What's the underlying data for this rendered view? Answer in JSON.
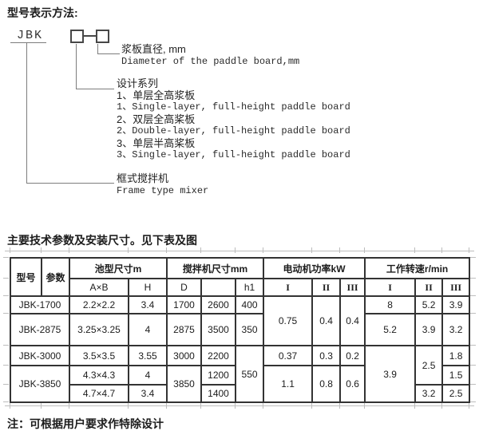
{
  "page": {
    "title": "型号表示方法:",
    "intro": "主要技术参数及安装尺寸。见下表及图",
    "note": "注：可根据用户要求作特除设计"
  },
  "diagram": {
    "model_prefix": "JBK",
    "paddle_diameter": {
      "zh": "浆板直径, mm",
      "en": "Diameter of the paddle board,mm"
    },
    "design_series": {
      "label": "设计系列",
      "item1_zh": "1、单层全高浆板",
      "item1_en": "1、Single-layer, full-height paddle board",
      "item2_zh": "2、双层全高桨板",
      "item2_en": "2、Double-layer, full-height paddle board",
      "item3_zh": "3、单层半高桨板",
      "item3_en": "3、Single-layer, full-height paddle board"
    },
    "frame_mixer": {
      "zh": "框式搅拌机",
      "en": "Frame type mixer"
    }
  },
  "table": {
    "col_model": "型号",
    "col_param": "参数",
    "grp_pool": "池型尺寸m",
    "grp_mixer": "搅拌机尺寸mm",
    "grp_power": "电动机功率kW",
    "grp_speed": "工作转速r/min",
    "sub": {
      "axb": "A×B",
      "h": "H",
      "d": "D",
      "blank": "",
      "h1": "h1",
      "p1": "I",
      "p2": "II",
      "p3": "III",
      "s1": "I",
      "s2": "II",
      "s3": "III"
    },
    "rows": {
      "r1": {
        "model": "JBK-1700",
        "axb": "2.2×2.2",
        "h": "3.4",
        "d": "1700",
        "d2": "2600",
        "h1": "400",
        "p1": "0.75",
        "p2": "0.4",
        "p3": "0.4",
        "s1": "8",
        "s2": "5.2",
        "s3": "3.9"
      },
      "r2": {
        "model": "JBK-2875",
        "axb": "3.25×3.25",
        "h": "4",
        "d": "2875",
        "d2": "3500",
        "h1": "350",
        "s1": "5.2",
        "s2": "3.9",
        "s3": "3.2"
      },
      "r3": {
        "model": "JBK-3000",
        "axb": "3.5×3.5",
        "h": "3.55",
        "d": "3000",
        "d2": "2200",
        "h1": "550",
        "p1": "0.37",
        "p2": "0.3",
        "p3": "0.2",
        "s1": "3.9",
        "s2": "2.5",
        "s3": "1.8"
      },
      "r4": {
        "model": "JBK-3850",
        "axb": "4.3×4.3",
        "h": "4",
        "d": "3850",
        "d2": "1200",
        "p1": "1.1",
        "p2": "0.8",
        "p3": "0.6",
        "s3": "1.5"
      },
      "r5": {
        "axb": "4.7×4.7",
        "h": "3.4",
        "d2": "1400",
        "s2": "3.2",
        "s3": "2.5"
      }
    }
  }
}
